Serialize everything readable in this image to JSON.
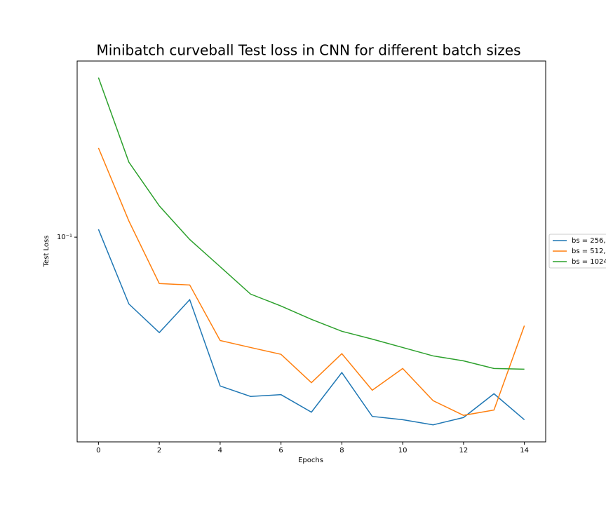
{
  "chart_data": {
    "type": "line",
    "title": "Minibatch curveball Test loss in CNN for different batch sizes",
    "x_label": "Epochs",
    "y_label": "Test Loss",
    "x": [
      0,
      1,
      2,
      3,
      4,
      5,
      6,
      7,
      8,
      9,
      10,
      11,
      12,
      13,
      14
    ],
    "xlim": [
      -0.7,
      14.7
    ],
    "xticks": [
      0,
      2,
      4,
      6,
      8,
      10,
      12,
      14
    ],
    "ylim": [
      0.0171,
      0.457
    ],
    "yticks": [
      {
        "value": 0.1,
        "label": "10⁻¹"
      }
    ],
    "yscale": "log",
    "legend": "right",
    "series": [
      {
        "name": "bs = 256,",
        "color": "#1f77b4",
        "values": [
          0.107,
          0.0562,
          0.0439,
          0.0583,
          0.0277,
          0.0253,
          0.0257,
          0.0221,
          0.0311,
          0.0213,
          0.0207,
          0.0198,
          0.0211,
          0.0259,
          0.0207
        ]
      },
      {
        "name": "bs = 512,",
        "color": "#ff7f0e",
        "values": [
          0.216,
          0.115,
          0.067,
          0.0662,
          0.041,
          0.0386,
          0.0364,
          0.0285,
          0.0366,
          0.0267,
          0.0322,
          0.0244,
          0.0215,
          0.0225,
          0.0466
        ]
      },
      {
        "name": "bs = 1024",
        "color": "#2ca02c",
        "values": [
          0.396,
          0.191,
          0.131,
          0.098,
          0.0775,
          0.0612,
          0.0552,
          0.0492,
          0.0444,
          0.0415,
          0.0386,
          0.0359,
          0.0344,
          0.0322,
          0.032
        ]
      }
    ]
  }
}
